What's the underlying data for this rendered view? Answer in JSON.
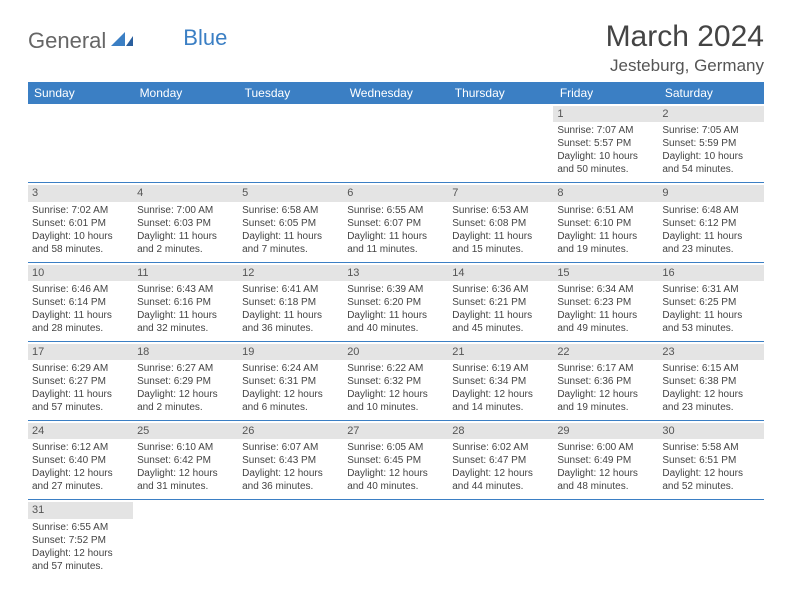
{
  "logo": {
    "text1": "General",
    "text2": "Blue"
  },
  "title": "March 2024",
  "location": "Jesteburg, Germany",
  "day_headers": [
    "Sunday",
    "Monday",
    "Tuesday",
    "Wednesday",
    "Thursday",
    "Friday",
    "Saturday"
  ],
  "colors": {
    "header_bg": "#3b7fc4",
    "daynum_bg": "#e4e4e4"
  },
  "weeks": [
    [
      null,
      null,
      null,
      null,
      null,
      {
        "n": "1",
        "sr": "Sunrise: 7:07 AM",
        "ss": "Sunset: 5:57 PM",
        "dl": "Daylight: 10 hours and 50 minutes."
      },
      {
        "n": "2",
        "sr": "Sunrise: 7:05 AM",
        "ss": "Sunset: 5:59 PM",
        "dl": "Daylight: 10 hours and 54 minutes."
      }
    ],
    [
      {
        "n": "3",
        "sr": "Sunrise: 7:02 AM",
        "ss": "Sunset: 6:01 PM",
        "dl": "Daylight: 10 hours and 58 minutes."
      },
      {
        "n": "4",
        "sr": "Sunrise: 7:00 AM",
        "ss": "Sunset: 6:03 PM",
        "dl": "Daylight: 11 hours and 2 minutes."
      },
      {
        "n": "5",
        "sr": "Sunrise: 6:58 AM",
        "ss": "Sunset: 6:05 PM",
        "dl": "Daylight: 11 hours and 7 minutes."
      },
      {
        "n": "6",
        "sr": "Sunrise: 6:55 AM",
        "ss": "Sunset: 6:07 PM",
        "dl": "Daylight: 11 hours and 11 minutes."
      },
      {
        "n": "7",
        "sr": "Sunrise: 6:53 AM",
        "ss": "Sunset: 6:08 PM",
        "dl": "Daylight: 11 hours and 15 minutes."
      },
      {
        "n": "8",
        "sr": "Sunrise: 6:51 AM",
        "ss": "Sunset: 6:10 PM",
        "dl": "Daylight: 11 hours and 19 minutes."
      },
      {
        "n": "9",
        "sr": "Sunrise: 6:48 AM",
        "ss": "Sunset: 6:12 PM",
        "dl": "Daylight: 11 hours and 23 minutes."
      }
    ],
    [
      {
        "n": "10",
        "sr": "Sunrise: 6:46 AM",
        "ss": "Sunset: 6:14 PM",
        "dl": "Daylight: 11 hours and 28 minutes."
      },
      {
        "n": "11",
        "sr": "Sunrise: 6:43 AM",
        "ss": "Sunset: 6:16 PM",
        "dl": "Daylight: 11 hours and 32 minutes."
      },
      {
        "n": "12",
        "sr": "Sunrise: 6:41 AM",
        "ss": "Sunset: 6:18 PM",
        "dl": "Daylight: 11 hours and 36 minutes."
      },
      {
        "n": "13",
        "sr": "Sunrise: 6:39 AM",
        "ss": "Sunset: 6:20 PM",
        "dl": "Daylight: 11 hours and 40 minutes."
      },
      {
        "n": "14",
        "sr": "Sunrise: 6:36 AM",
        "ss": "Sunset: 6:21 PM",
        "dl": "Daylight: 11 hours and 45 minutes."
      },
      {
        "n": "15",
        "sr": "Sunrise: 6:34 AM",
        "ss": "Sunset: 6:23 PM",
        "dl": "Daylight: 11 hours and 49 minutes."
      },
      {
        "n": "16",
        "sr": "Sunrise: 6:31 AM",
        "ss": "Sunset: 6:25 PM",
        "dl": "Daylight: 11 hours and 53 minutes."
      }
    ],
    [
      {
        "n": "17",
        "sr": "Sunrise: 6:29 AM",
        "ss": "Sunset: 6:27 PM",
        "dl": "Daylight: 11 hours and 57 minutes."
      },
      {
        "n": "18",
        "sr": "Sunrise: 6:27 AM",
        "ss": "Sunset: 6:29 PM",
        "dl": "Daylight: 12 hours and 2 minutes."
      },
      {
        "n": "19",
        "sr": "Sunrise: 6:24 AM",
        "ss": "Sunset: 6:31 PM",
        "dl": "Daylight: 12 hours and 6 minutes."
      },
      {
        "n": "20",
        "sr": "Sunrise: 6:22 AM",
        "ss": "Sunset: 6:32 PM",
        "dl": "Daylight: 12 hours and 10 minutes."
      },
      {
        "n": "21",
        "sr": "Sunrise: 6:19 AM",
        "ss": "Sunset: 6:34 PM",
        "dl": "Daylight: 12 hours and 14 minutes."
      },
      {
        "n": "22",
        "sr": "Sunrise: 6:17 AM",
        "ss": "Sunset: 6:36 PM",
        "dl": "Daylight: 12 hours and 19 minutes."
      },
      {
        "n": "23",
        "sr": "Sunrise: 6:15 AM",
        "ss": "Sunset: 6:38 PM",
        "dl": "Daylight: 12 hours and 23 minutes."
      }
    ],
    [
      {
        "n": "24",
        "sr": "Sunrise: 6:12 AM",
        "ss": "Sunset: 6:40 PM",
        "dl": "Daylight: 12 hours and 27 minutes."
      },
      {
        "n": "25",
        "sr": "Sunrise: 6:10 AM",
        "ss": "Sunset: 6:42 PM",
        "dl": "Daylight: 12 hours and 31 minutes."
      },
      {
        "n": "26",
        "sr": "Sunrise: 6:07 AM",
        "ss": "Sunset: 6:43 PM",
        "dl": "Daylight: 12 hours and 36 minutes."
      },
      {
        "n": "27",
        "sr": "Sunrise: 6:05 AM",
        "ss": "Sunset: 6:45 PM",
        "dl": "Daylight: 12 hours and 40 minutes."
      },
      {
        "n": "28",
        "sr": "Sunrise: 6:02 AM",
        "ss": "Sunset: 6:47 PM",
        "dl": "Daylight: 12 hours and 44 minutes."
      },
      {
        "n": "29",
        "sr": "Sunrise: 6:00 AM",
        "ss": "Sunset: 6:49 PM",
        "dl": "Daylight: 12 hours and 48 minutes."
      },
      {
        "n": "30",
        "sr": "Sunrise: 5:58 AM",
        "ss": "Sunset: 6:51 PM",
        "dl": "Daylight: 12 hours and 52 minutes."
      }
    ],
    [
      {
        "n": "31",
        "sr": "Sunrise: 6:55 AM",
        "ss": "Sunset: 7:52 PM",
        "dl": "Daylight: 12 hours and 57 minutes."
      },
      null,
      null,
      null,
      null,
      null,
      null
    ]
  ]
}
